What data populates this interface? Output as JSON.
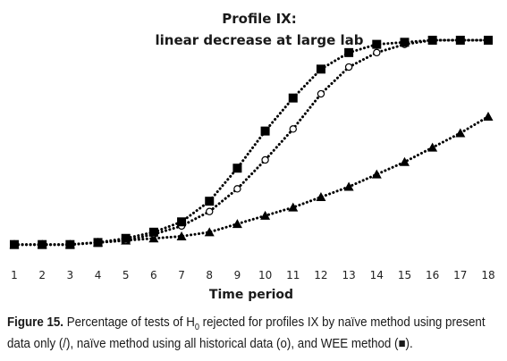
{
  "chart_data": {
    "type": "line",
    "title": "Profile IX:",
    "subtitle": "linear decrease at large lab",
    "xlabel": "Time period",
    "ylabel": "",
    "x": [
      1,
      2,
      3,
      4,
      5,
      6,
      7,
      8,
      9,
      10,
      11,
      12,
      13,
      14,
      15,
      16,
      17,
      18
    ],
    "ylim": [
      0,
      1
    ],
    "grid": false,
    "legend": "none",
    "series": [
      {
        "marker": "square",
        "values": [
          0.01,
          0.01,
          0.01,
          0.02,
          0.04,
          0.07,
          0.12,
          0.22,
          0.38,
          0.56,
          0.72,
          0.86,
          0.94,
          0.98,
          0.99,
          1.0,
          1.0,
          1.0
        ]
      },
      {
        "marker": "circle-open",
        "values": [
          0.01,
          0.01,
          0.01,
          0.02,
          0.03,
          0.06,
          0.1,
          0.17,
          0.28,
          0.42,
          0.57,
          0.74,
          0.87,
          0.94,
          0.98,
          1.0,
          1.0,
          1.0
        ]
      },
      {
        "marker": "triangle",
        "values": [
          0.01,
          0.01,
          0.01,
          0.02,
          0.03,
          0.04,
          0.05,
          0.07,
          0.11,
          0.15,
          0.19,
          0.24,
          0.29,
          0.35,
          0.41,
          0.48,
          0.55,
          0.63
        ]
      }
    ]
  },
  "caption": {
    "label": "Figure 15.",
    "text_part1": " Percentage of tests of H",
    "subscript": "0",
    "text_part2": " rejected for profiles IX by naïve method using present data only (/), naïve method using all historical data (o), and WEE method (■)."
  },
  "colors": {
    "series": "#000000",
    "text": "#1a1a1a"
  }
}
